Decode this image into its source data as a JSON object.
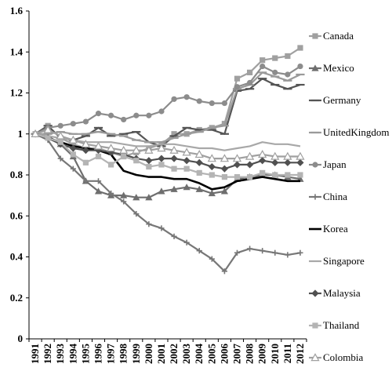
{
  "chart_data": {
    "type": "line",
    "title": "",
    "xlabel": "",
    "ylabel": "",
    "ylim": [
      0,
      1.6
    ],
    "yticks": [
      "0",
      "0.2",
      "0.4",
      "0.6",
      "0.8",
      "1",
      "1.2",
      "1.4",
      "1.6"
    ],
    "grid": false,
    "legend_position": "right",
    "categories": [
      "1991",
      "1992",
      "1993",
      "1994",
      "1995",
      "1996",
      "1997",
      "1998",
      "1999",
      "2000",
      "2001",
      "2002",
      "2003",
      "2004",
      "2005",
      "2006",
      "2007",
      "2008",
      "2009",
      "2010",
      "2011",
      "2012"
    ],
    "series": [
      {
        "name": "Canada",
        "color": "#a0a0a0",
        "marker": "square",
        "values": [
          1.0,
          1.04,
          0.98,
          0.95,
          0.93,
          0.93,
          0.91,
          0.89,
          0.91,
          0.93,
          0.95,
          1.0,
          1.0,
          1.02,
          1.03,
          1.05,
          1.27,
          1.3,
          1.36,
          1.37,
          1.38,
          1.42
        ]
      },
      {
        "name": "Mexico",
        "color": "#6e6e6e",
        "marker": "triangle",
        "values": [
          1.0,
          0.99,
          0.95,
          0.89,
          0.77,
          0.72,
          0.7,
          0.7,
          0.69,
          0.69,
          0.72,
          0.73,
          0.74,
          0.73,
          0.71,
          0.72,
          0.78,
          0.79,
          0.8,
          0.8,
          0.79,
          0.78
        ]
      },
      {
        "name": "Germany",
        "color": "#555555",
        "marker": "dash",
        "values": [
          1.0,
          1.04,
          0.98,
          0.97,
          0.99,
          1.03,
          0.99,
          1.0,
          1.01,
          0.96,
          0.94,
          0.99,
          1.03,
          1.02,
          1.02,
          1.0,
          1.21,
          1.22,
          1.27,
          1.24,
          1.22,
          1.24
        ]
      },
      {
        "name": "UnitedKingdom",
        "color": "#9a9a9a",
        "marker": "dash",
        "values": [
          1.0,
          1.0,
          1.01,
          1.0,
          1.0,
          1.01,
          1.0,
          0.99,
          0.97,
          0.96,
          0.96,
          0.98,
          1.0,
          1.01,
          1.03,
          1.04,
          1.22,
          1.24,
          1.3,
          1.28,
          1.26,
          1.29
        ]
      },
      {
        "name": "Japan",
        "color": "#8c8c8c",
        "marker": "circle",
        "values": [
          1.0,
          1.03,
          1.04,
          1.05,
          1.06,
          1.1,
          1.09,
          1.07,
          1.09,
          1.09,
          1.11,
          1.17,
          1.18,
          1.16,
          1.15,
          1.15,
          1.23,
          1.25,
          1.33,
          1.3,
          1.29,
          1.33
        ]
      },
      {
        "name": "China",
        "color": "#777777",
        "marker": "plus",
        "values": [
          1.0,
          0.97,
          0.88,
          0.83,
          0.77,
          0.77,
          0.71,
          0.67,
          0.61,
          0.56,
          0.54,
          0.5,
          0.47,
          0.43,
          0.39,
          0.33,
          0.42,
          0.44,
          0.43,
          0.42,
          0.41,
          0.42
        ]
      },
      {
        "name": "Korea",
        "color": "#000000",
        "marker": "none",
        "values": [
          1.0,
          0.98,
          0.96,
          0.94,
          0.93,
          0.92,
          0.9,
          0.82,
          0.8,
          0.79,
          0.79,
          0.78,
          0.78,
          0.76,
          0.73,
          0.74,
          0.77,
          0.78,
          0.79,
          0.78,
          0.77,
          0.77
        ]
      },
      {
        "name": "Singapore",
        "color": "#a8a8a8",
        "marker": "none",
        "values": [
          1.0,
          0.99,
          0.98,
          0.97,
          0.96,
          0.96,
          0.96,
          0.95,
          0.94,
          0.94,
          0.95,
          0.95,
          0.94,
          0.93,
          0.93,
          0.92,
          0.93,
          0.94,
          0.96,
          0.95,
          0.95,
          0.94
        ]
      },
      {
        "name": "Malaysia",
        "color": "#505050",
        "marker": "diamond",
        "values": [
          1.0,
          0.98,
          0.95,
          0.93,
          0.92,
          0.92,
          0.91,
          0.9,
          0.88,
          0.87,
          0.88,
          0.88,
          0.87,
          0.86,
          0.84,
          0.83,
          0.85,
          0.85,
          0.87,
          0.86,
          0.86,
          0.86
        ]
      },
      {
        "name": "Thailand",
        "color": "#b4b4b4",
        "marker": "square",
        "values": [
          1.0,
          0.98,
          0.96,
          0.9,
          0.86,
          0.89,
          0.85,
          0.89,
          0.87,
          0.84,
          0.85,
          0.83,
          0.83,
          0.81,
          0.8,
          0.79,
          0.79,
          0.79,
          0.81,
          0.8,
          0.8,
          0.8
        ]
      },
      {
        "name": "Colombia",
        "color": "#a0a0a0",
        "marker": "triangle-open",
        "values": [
          1.0,
          1.02,
          0.99,
          0.97,
          0.95,
          0.94,
          0.93,
          0.92,
          0.92,
          0.92,
          0.93,
          0.92,
          0.91,
          0.9,
          0.88,
          0.88,
          0.88,
          0.89,
          0.9,
          0.89,
          0.89,
          0.89
        ]
      }
    ]
  }
}
